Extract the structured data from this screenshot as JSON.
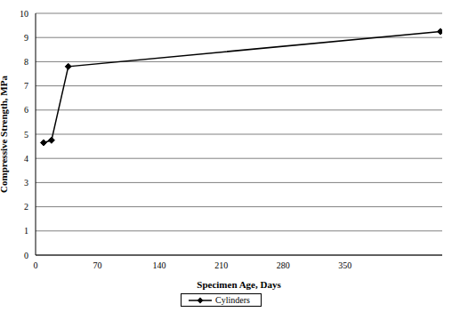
{
  "chart_data": {
    "type": "line",
    "x_label": "Specimen Age, Days",
    "y_label": "Compressive Strength, MPa",
    "x": [
      9,
      18,
      37,
      458
    ],
    "series": [
      {
        "name": "Cylinders",
        "color": "#000000",
        "marker": "diamond",
        "values": [
          4.65,
          4.75,
          7.8,
          9.25
        ]
      }
    ],
    "xlim": [
      0,
      460
    ],
    "xticks": [
      0,
      70,
      140,
      210,
      280,
      350
    ],
    "ylim": [
      0,
      10
    ],
    "yticks": [
      0,
      1,
      2,
      3,
      4,
      5,
      6,
      7,
      8,
      9,
      10
    ],
    "grid": true,
    "legend": "bottom"
  }
}
